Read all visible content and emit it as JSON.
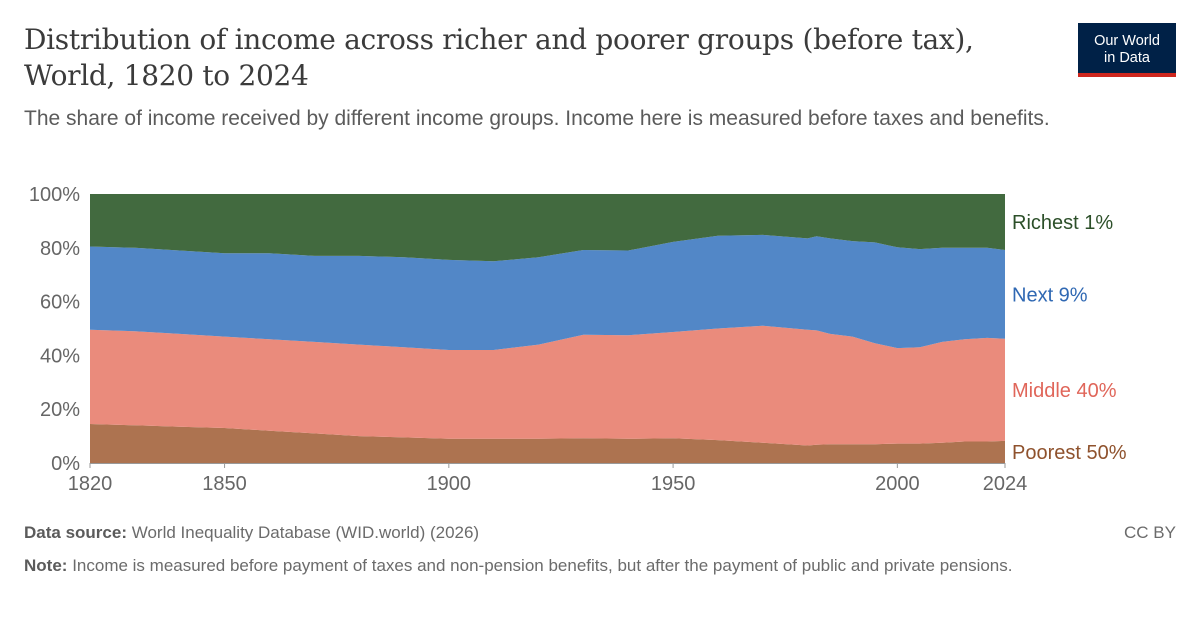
{
  "header": {
    "title": "Distribution of income across richer and poorer groups (before tax), World, 1820 to 2024",
    "subtitle": "The share of income received by different income groups. Income here is measured before taxes and benefits."
  },
  "logo": {
    "line1": "Our World",
    "line2": "in Data"
  },
  "footer": {
    "source_label": "Data source:",
    "source_text": "World Inequality Database (WID.world) (2026)",
    "license": "CC BY",
    "note_label": "Note:",
    "note_text": "Income is measured before payment of taxes and non-pension benefits, but after the payment of public and private pensions."
  },
  "chart_data": {
    "type": "area",
    "stacked": true,
    "x": [
      1820,
      1830,
      1840,
      1850,
      1860,
      1870,
      1880,
      1890,
      1900,
      1910,
      1920,
      1930,
      1940,
      1950,
      1960,
      1970,
      1980,
      1982,
      1985,
      1990,
      1995,
      2000,
      2005,
      2010,
      2015,
      2020,
      2024
    ],
    "series": [
      {
        "name": "Poorest 50%",
        "color": "#ad7350",
        "values": [
          14.5,
          14,
          13.5,
          13,
          12,
          11,
          10,
          9.5,
          9,
          9,
          9,
          9.2,
          9,
          9.2,
          8.5,
          7.5,
          6.5,
          6.8,
          7,
          7,
          7,
          7.2,
          7.2,
          7.5,
          8,
          8,
          8.2
        ]
      },
      {
        "name": "Middle 40%",
        "color": "#ea8b7c",
        "values": [
          35,
          35,
          34.5,
          34,
          34,
          34,
          34,
          33.5,
          33,
          33,
          35,
          38.5,
          38.5,
          39.5,
          41.5,
          43.5,
          43,
          42.5,
          41,
          40,
          37.5,
          35.5,
          35.8,
          37.5,
          38,
          38.5,
          38
        ]
      },
      {
        "name": "Next 9%",
        "color": "#5287c7",
        "values": [
          31,
          31,
          31,
          31,
          32,
          32,
          33,
          33.5,
          33.5,
          33,
          32.5,
          31.5,
          31.5,
          33.5,
          34.5,
          33.8,
          34,
          35,
          35.5,
          35.5,
          37.5,
          37.5,
          36.5,
          35,
          34,
          33.5,
          33
        ]
      },
      {
        "name": "Richest 1%",
        "color": "#426a3f",
        "values": [
          19.5,
          20,
          21,
          22,
          22,
          23,
          23,
          23.5,
          24.5,
          25,
          23.5,
          20.8,
          21,
          17.8,
          15.5,
          15.2,
          16.5,
          15.7,
          16.5,
          17.5,
          18,
          19.8,
          20.5,
          20,
          20,
          20,
          20.8
        ]
      }
    ],
    "xticks": [
      "1820",
      "1850",
      "1900",
      "1950",
      "2000",
      "2024"
    ],
    "yticks": [
      "0%",
      "20%",
      "40%",
      "60%",
      "80%",
      "100%"
    ],
    "xlim": [
      1820,
      2024
    ],
    "ylim": [
      0,
      100
    ],
    "legend": "right, inline labels",
    "grid": false
  }
}
